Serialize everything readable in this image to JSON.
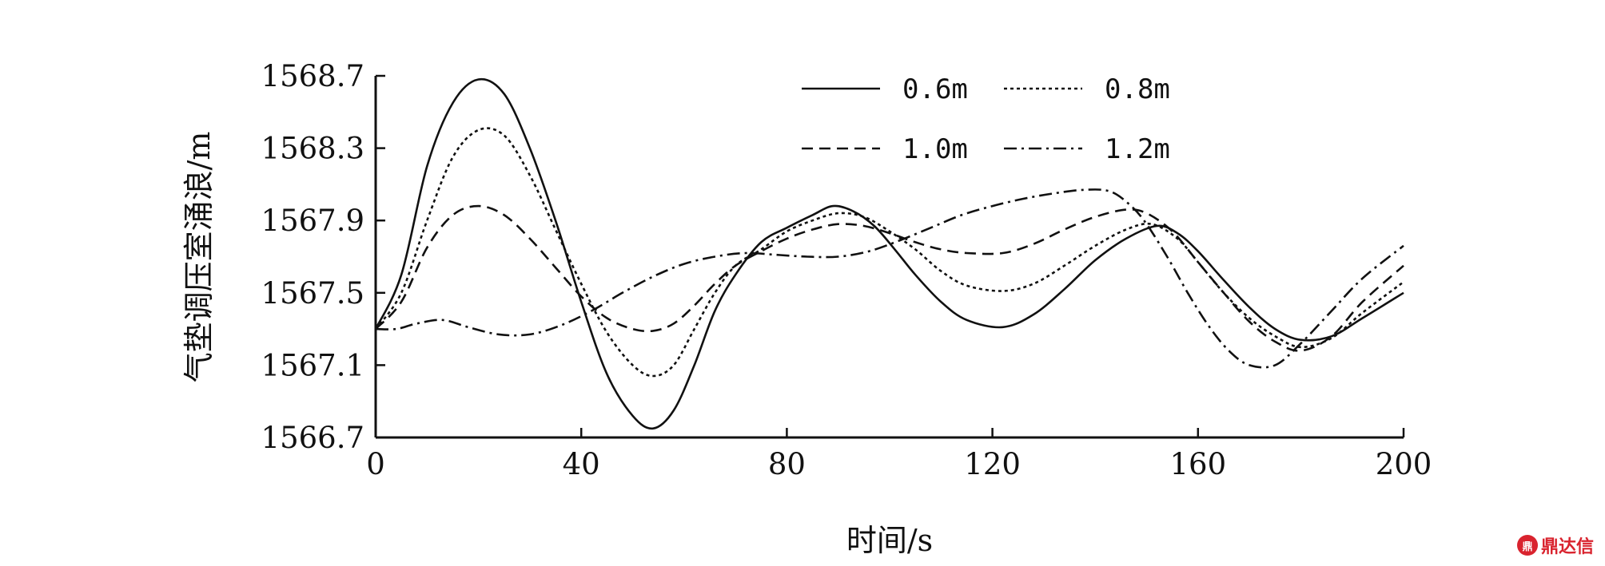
{
  "chart_data": {
    "type": "line",
    "title": "",
    "xlabel": "时间/s",
    "ylabel": "气垫调压室涌浪/m",
    "xlim": [
      0,
      200
    ],
    "ylim": [
      1566.7,
      1568.7
    ],
    "xticks": [
      0,
      40,
      80,
      120,
      160,
      200
    ],
    "yticks": [
      1566.7,
      1567.1,
      1567.5,
      1567.9,
      1568.3,
      1568.7
    ],
    "ytick_labels": [
      "1566.7",
      "1567.1",
      "1567.5",
      "1567.9",
      "1568.3",
      "1568.7"
    ],
    "grid": false,
    "legend_position": "top-right",
    "series": [
      {
        "name": "0.6m",
        "style": "solid",
        "x": [
          0,
          5,
          10,
          15,
          20,
          25,
          30,
          35,
          40,
          45,
          50,
          54,
          58,
          62,
          66,
          70,
          75,
          80,
          85,
          89,
          93,
          97,
          101,
          105,
          110,
          115,
          122,
          128,
          134,
          140,
          146,
          152,
          156,
          160,
          165,
          170,
          175,
          180,
          186,
          192,
          200
        ],
        "y": [
          1567.3,
          1567.6,
          1568.2,
          1568.55,
          1568.68,
          1568.6,
          1568.3,
          1567.9,
          1567.45,
          1567.05,
          1566.82,
          1566.75,
          1566.85,
          1567.1,
          1567.4,
          1567.6,
          1567.78,
          1567.86,
          1567.93,
          1567.98,
          1567.95,
          1567.87,
          1567.74,
          1567.6,
          1567.45,
          1567.35,
          1567.31,
          1567.38,
          1567.52,
          1567.68,
          1567.8,
          1567.87,
          1567.83,
          1567.73,
          1567.57,
          1567.42,
          1567.3,
          1567.24,
          1567.26,
          1567.36,
          1567.5
        ]
      },
      {
        "name": "0.8m",
        "style": "dotted",
        "x": [
          0,
          5,
          10,
          15,
          20,
          25,
          30,
          35,
          40,
          45,
          50,
          54,
          58,
          62,
          66,
          70,
          75,
          80,
          85,
          90,
          95,
          100,
          105,
          110,
          115,
          122,
          128,
          134,
          140,
          146,
          151,
          156,
          160,
          165,
          170,
          175,
          180,
          186,
          192,
          200
        ],
        "y": [
          1567.3,
          1567.5,
          1567.9,
          1568.25,
          1568.4,
          1568.37,
          1568.15,
          1567.85,
          1567.55,
          1567.28,
          1567.1,
          1567.04,
          1567.1,
          1567.3,
          1567.5,
          1567.65,
          1567.74,
          1567.84,
          1567.9,
          1567.94,
          1567.92,
          1567.84,
          1567.74,
          1567.62,
          1567.54,
          1567.51,
          1567.55,
          1567.65,
          1567.76,
          1567.85,
          1567.88,
          1567.8,
          1567.67,
          1567.5,
          1567.36,
          1567.26,
          1567.2,
          1567.25,
          1567.39,
          1567.56
        ]
      },
      {
        "name": "1.0m",
        "style": "dashed",
        "x": [
          0,
          5,
          10,
          15,
          20,
          25,
          30,
          35,
          40,
          45,
          50,
          54,
          58,
          62,
          66,
          70,
          75,
          80,
          85,
          90,
          95,
          100,
          105,
          110,
          115,
          122,
          128,
          134,
          140,
          146,
          150,
          155,
          160,
          165,
          170,
          175,
          180,
          186,
          192,
          200
        ],
        "y": [
          1567.3,
          1567.45,
          1567.75,
          1567.93,
          1567.98,
          1567.93,
          1567.8,
          1567.64,
          1567.48,
          1567.36,
          1567.3,
          1567.29,
          1567.33,
          1567.43,
          1567.55,
          1567.65,
          1567.73,
          1567.8,
          1567.85,
          1567.88,
          1567.87,
          1567.83,
          1567.78,
          1567.74,
          1567.72,
          1567.72,
          1567.77,
          1567.85,
          1567.92,
          1567.96,
          1567.94,
          1567.84,
          1567.67,
          1567.5,
          1567.34,
          1567.23,
          1567.18,
          1567.26,
          1567.45,
          1567.65
        ]
      },
      {
        "name": "1.2m",
        "style": "dashdot",
        "x": [
          0,
          4,
          8,
          13,
          18,
          24,
          30,
          36,
          42,
          48,
          54,
          60,
          66,
          72,
          78,
          84,
          90,
          96,
          102,
          108,
          114,
          120,
          126,
          132,
          138,
          143,
          147,
          150,
          154,
          158,
          162,
          166,
          170,
          175,
          180,
          186,
          192,
          200
        ],
        "y": [
          1567.3,
          1567.3,
          1567.33,
          1567.35,
          1567.31,
          1567.27,
          1567.27,
          1567.32,
          1567.4,
          1567.5,
          1567.59,
          1567.66,
          1567.7,
          1567.72,
          1567.71,
          1567.7,
          1567.7,
          1567.73,
          1567.79,
          1567.86,
          1567.93,
          1567.98,
          1568.02,
          1568.05,
          1568.07,
          1568.06,
          1567.98,
          1567.88,
          1567.7,
          1567.5,
          1567.32,
          1567.18,
          1567.1,
          1567.1,
          1567.22,
          1567.4,
          1567.58,
          1567.76
        ]
      }
    ]
  },
  "watermark": {
    "icon": "鼎",
    "text": "鼎达信"
  }
}
